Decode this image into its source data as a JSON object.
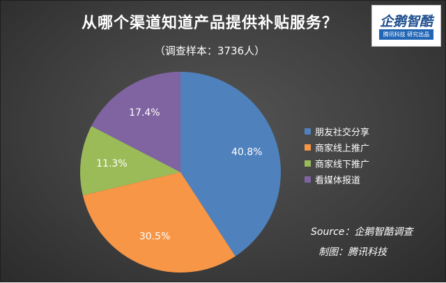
{
  "header": {
    "title": "从哪个渠道知道产品提供补贴服务？",
    "subtitle": "（调查样本：3736人）"
  },
  "logo": {
    "name": "企鹅智酷",
    "tagline": "腾讯科技  研究出品"
  },
  "footer": {
    "source": "Source：企鹅智酷调查",
    "credit": "制图：腾讯科技"
  },
  "chart_data": {
    "type": "pie",
    "title": "从哪个渠道知道产品提供补贴服务？",
    "subtitle": "（调查样本：3736人）",
    "legend_position": "right",
    "slices": [
      {
        "label": "朋友社交分享",
        "value": 40.8,
        "display": "40.8%",
        "color": "#4f81bd"
      },
      {
        "label": "商家线上推广",
        "value": 30.5,
        "display": "30.5%",
        "color": "#f79646"
      },
      {
        "label": "商家线下推广",
        "value": 11.3,
        "display": "11.3%",
        "color": "#9bbb59"
      },
      {
        "label": "看媒体报道",
        "value": 17.4,
        "display": "17.4%",
        "color": "#8064a2"
      }
    ]
  }
}
